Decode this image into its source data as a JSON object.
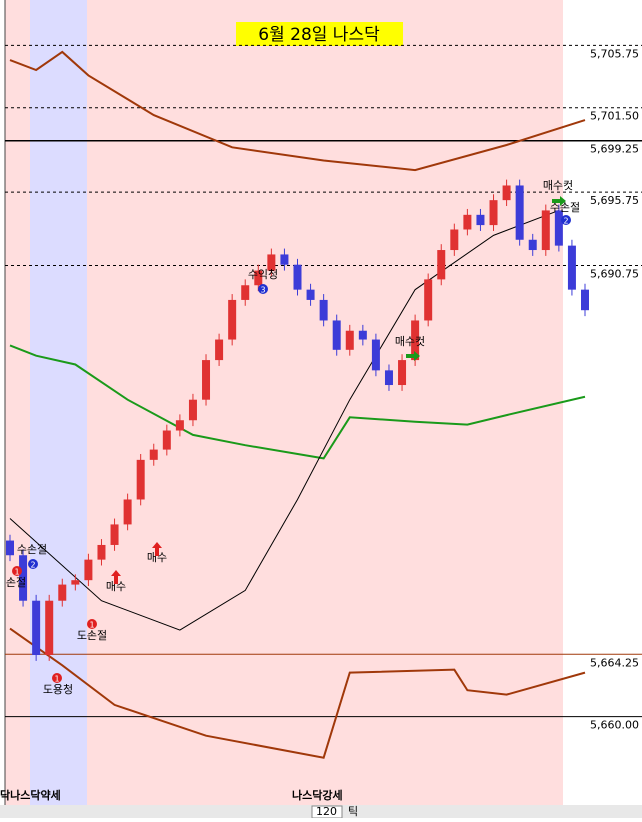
{
  "chart_data": {
    "type": "candlestick",
    "title": "6월 28일 나스닥",
    "ylim": [
      5655,
      5708.5
    ],
    "yticks": [
      {
        "value": 5705.75,
        "label": "5,705.75"
      },
      {
        "value": 5701.5,
        "label": "5,701.50"
      },
      {
        "value": 5699.25,
        "label": "5,699.25"
      },
      {
        "value": 5695.75,
        "label": "5,695.75"
      },
      {
        "value": 5690.75,
        "label": "5,690.75"
      },
      {
        "value": 5664.25,
        "label": "5,664.25"
      },
      {
        "value": 5660.0,
        "label": "5,660.00"
      }
    ],
    "tick_lines": [
      "dashed",
      "dashed",
      "solid",
      "dashed",
      "dashed",
      "solid",
      "solid"
    ],
    "tick_line_colors": [
      "#000000",
      "#000000",
      "#000000",
      "#000000",
      "#000000",
      "#a0380a",
      "#000000"
    ],
    "candles": {
      "up_color": "#e03232",
      "down_color": "#3c3cd8",
      "open": [
        5672.0,
        5671.0,
        5667.9,
        5664.2,
        5667.9,
        5669.0,
        5669.3,
        5670.7,
        5671.7,
        5673.1,
        5674.8,
        5677.5,
        5678.2,
        5679.5,
        5680.2,
        5681.6,
        5684.3,
        5685.7,
        5688.4,
        5689.4,
        5690.4,
        5691.5,
        5690.8,
        5689.1,
        5688.4,
        5687.0,
        5685.0,
        5686.3,
        5685.7,
        5683.6,
        5682.6,
        5684.3,
        5687.0,
        5689.8,
        5691.8,
        5693.2,
        5694.2,
        5693.5,
        5695.2,
        5696.2,
        5692.5,
        5691.8,
        5694.5,
        5692.1,
        5689.1
      ],
      "high": [
        5672.4,
        5671.4,
        5668.3,
        5668.3,
        5669.4,
        5669.7,
        5671.1,
        5672.1,
        5673.5,
        5675.2,
        5677.9,
        5678.6,
        5679.9,
        5680.6,
        5682.0,
        5684.7,
        5686.1,
        5688.8,
        5689.8,
        5690.8,
        5691.9,
        5691.9,
        5691.2,
        5689.5,
        5688.8,
        5687.4,
        5686.7,
        5686.7,
        5686.1,
        5684.0,
        5684.7,
        5687.4,
        5690.2,
        5692.2,
        5693.6,
        5694.6,
        5694.6,
        5695.6,
        5696.6,
        5696.6,
        5692.9,
        5694.9,
        5694.9,
        5692.5,
        5689.5
      ],
      "low": [
        5670.6,
        5667.5,
        5663.8,
        5663.8,
        5667.5,
        5668.6,
        5668.9,
        5670.3,
        5671.3,
        5672.7,
        5674.4,
        5677.1,
        5677.8,
        5679.1,
        5679.8,
        5681.2,
        5683.9,
        5685.3,
        5688.0,
        5689.0,
        5690.0,
        5690.4,
        5688.7,
        5688.0,
        5686.6,
        5684.6,
        5684.6,
        5685.3,
        5683.2,
        5682.2,
        5682.2,
        5683.9,
        5686.6,
        5689.4,
        5691.4,
        5692.8,
        5693.1,
        5693.1,
        5694.8,
        5692.1,
        5691.4,
        5691.4,
        5691.7,
        5688.7,
        5687.3
      ],
      "close": [
        5671.0,
        5667.9,
        5664.2,
        5667.9,
        5669.0,
        5669.3,
        5670.7,
        5671.7,
        5673.1,
        5674.8,
        5677.5,
        5678.2,
        5679.5,
        5680.2,
        5681.6,
        5684.3,
        5685.7,
        5688.4,
        5689.4,
        5690.4,
        5691.5,
        5690.8,
        5689.1,
        5688.4,
        5687.0,
        5685.0,
        5686.3,
        5685.7,
        5683.6,
        5682.6,
        5684.3,
        5687.0,
        5689.8,
        5691.8,
        5693.2,
        5694.2,
        5693.5,
        5695.2,
        5696.2,
        5692.5,
        5691.8,
        5694.5,
        5692.1,
        5689.1,
        5687.7
      ]
    },
    "series": [
      {
        "color": "#a0380a",
        "width": 2,
        "x": [
          0,
          2,
          4,
          6,
          11,
          17,
          24,
          31,
          38,
          44
        ],
        "values": [
          5704.75,
          5704.07,
          5705.3,
          5703.7,
          5701.0,
          5698.8,
          5697.9,
          5697.25,
          5698.96,
          5700.66
        ]
      },
      {
        "color": "#1a9a1a",
        "width": 2,
        "x": [
          0,
          2,
          5,
          9,
          14,
          18,
          24,
          26,
          31,
          35,
          38,
          44
        ],
        "values": [
          5685.3,
          5684.6,
          5684.0,
          5681.6,
          5679.2,
          5678.5,
          5677.6,
          5680.4,
          5680.1,
          5679.9,
          5680.55,
          5681.8
        ]
      },
      {
        "color": "#000000",
        "width": 1,
        "x": [
          0,
          7,
          13,
          18,
          22,
          26,
          31,
          37,
          42
        ],
        "values": [
          5673.5,
          5667.9,
          5665.9,
          5668.6,
          5674.8,
          5681.6,
          5689.1,
          5692.8,
          5694.5
        ]
      },
      {
        "color": "#a0380a",
        "width": 2,
        "x": [
          0,
          4,
          8,
          15,
          24,
          26,
          34,
          35,
          38,
          44
        ],
        "values": [
          5666.0,
          5663.5,
          5660.8,
          5658.7,
          5657.2,
          5663.0,
          5663.2,
          5661.8,
          5661.5,
          5663.0
        ]
      }
    ],
    "annotations": [
      "수손절",
      "손절",
      "도손절",
      "도용청",
      "매수",
      "매수",
      "수익청",
      "매수컷",
      "매수컷",
      "수손절"
    ],
    "badges": [
      {
        "label": "1",
        "color": "#e02020"
      },
      {
        "label": "1",
        "color": "#e02020"
      },
      {
        "label": "1",
        "color": "#e02020"
      },
      {
        "label": "2",
        "color": "#2030d0"
      },
      {
        "label": "2",
        "color": "#2030d0"
      },
      {
        "label": "3",
        "color": "#2030d0"
      }
    ],
    "session_labels": [
      "닥나스닥약세",
      "나스닥강세"
    ],
    "toolbar": {
      "period": "120",
      "unit": "틱"
    }
  }
}
